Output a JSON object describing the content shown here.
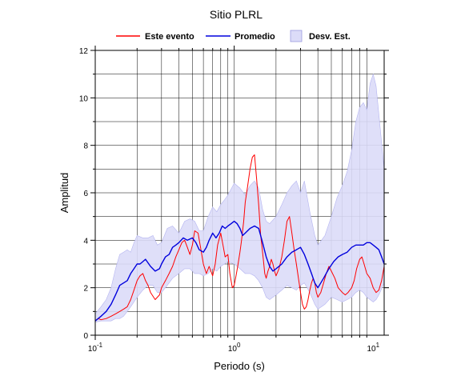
{
  "chart_data": {
    "type": "line",
    "title": "Sitio PLRL",
    "xlabel": "Periodo (s)",
    "ylabel": "Amplitud",
    "xscale": "log",
    "xlim": [
      0.1,
      12
    ],
    "ylim": [
      0,
      12
    ],
    "grid": true,
    "legend_position": "top",
    "legend": [
      "Este evento",
      "Promedio",
      "Desv. Est."
    ],
    "x_ticks": [
      {
        "value": 0.1,
        "base": "10",
        "exp": "-1"
      },
      {
        "value": 1,
        "base": "10",
        "exp": "0"
      },
      {
        "value": 10,
        "base": "10",
        "exp": "1"
      }
    ],
    "y_ticks": [
      0,
      2,
      4,
      6,
      8,
      10,
      12
    ],
    "colors": {
      "event": "#ff0000",
      "mean": "#0000dd",
      "band_fill": "#dcdcf8",
      "band_stroke": "#b4b4f0"
    },
    "series": [
      {
        "name": "Este evento",
        "x": [
          0.1,
          0.105,
          0.11,
          0.12,
          0.13,
          0.14,
          0.15,
          0.16,
          0.17,
          0.18,
          0.19,
          0.2,
          0.21,
          0.22,
          0.23,
          0.24,
          0.25,
          0.27,
          0.29,
          0.3,
          0.32,
          0.34,
          0.36,
          0.38,
          0.4,
          0.42,
          0.44,
          0.46,
          0.48,
          0.5,
          0.52,
          0.55,
          0.58,
          0.6,
          0.63,
          0.66,
          0.7,
          0.73,
          0.76,
          0.8,
          0.83,
          0.86,
          0.9,
          0.93,
          0.97,
          1.0,
          1.03,
          1.06,
          1.1,
          1.13,
          1.17,
          1.2,
          1.25,
          1.3,
          1.35,
          1.4,
          1.45,
          1.5,
          1.55,
          1.58,
          1.62,
          1.66,
          1.7,
          1.75,
          1.8,
          1.85,
          1.9,
          1.95,
          2.0,
          2.1,
          2.2,
          2.3,
          2.4,
          2.5,
          2.6,
          2.7,
          2.8,
          2.9,
          3.0,
          3.1,
          3.2,
          3.3,
          3.4,
          3.5,
          3.6,
          3.7,
          3.8,
          3.9,
          4.0,
          4.2,
          4.4,
          4.6,
          4.8,
          5.0,
          5.3,
          5.6,
          6.0,
          6.3,
          6.6,
          7.0,
          7.3,
          7.6,
          8.0,
          8.3,
          8.6,
          9.0,
          9.5,
          10.0,
          10.5,
          11.0,
          11.5,
          12.0
        ],
        "y": [
          0.6,
          0.7,
          0.65,
          0.7,
          0.8,
          0.9,
          1.0,
          1.1,
          1.2,
          1.5,
          1.9,
          2.3,
          2.5,
          2.6,
          2.3,
          2.1,
          1.8,
          1.5,
          1.7,
          2.0,
          2.3,
          2.6,
          2.9,
          3.3,
          3.6,
          3.9,
          4.0,
          3.7,
          3.4,
          3.8,
          4.4,
          4.3,
          3.5,
          3.0,
          2.6,
          2.9,
          2.5,
          3.0,
          3.8,
          4.3,
          3.8,
          3.3,
          3.4,
          2.6,
          2.0,
          2.1,
          2.5,
          2.9,
          3.5,
          4.0,
          4.8,
          5.6,
          6.3,
          7.0,
          7.5,
          7.6,
          6.6,
          5.5,
          4.2,
          3.8,
          3.2,
          2.6,
          2.4,
          2.7,
          2.9,
          3.2,
          3.0,
          2.7,
          2.5,
          2.8,
          3.3,
          4.0,
          4.8,
          5.0,
          4.3,
          3.6,
          3.0,
          2.4,
          1.8,
          1.3,
          1.1,
          1.2,
          1.5,
          1.9,
          2.2,
          2.4,
          2.2,
          1.8,
          1.6,
          1.8,
          2.2,
          2.6,
          2.9,
          2.7,
          2.4,
          2.0,
          1.8,
          1.7,
          1.8,
          2.0,
          2.3,
          2.8,
          3.2,
          3.3,
          3.0,
          2.6,
          2.4,
          2.0,
          1.8,
          1.9,
          2.3,
          2.9
        ]
      },
      {
        "name": "Promedio",
        "x": [
          0.1,
          0.11,
          0.12,
          0.13,
          0.14,
          0.15,
          0.16,
          0.17,
          0.18,
          0.19,
          0.2,
          0.21,
          0.22,
          0.23,
          0.25,
          0.27,
          0.29,
          0.3,
          0.32,
          0.34,
          0.36,
          0.38,
          0.4,
          0.43,
          0.46,
          0.5,
          0.53,
          0.56,
          0.6,
          0.63,
          0.66,
          0.7,
          0.74,
          0.78,
          0.82,
          0.86,
          0.9,
          0.95,
          1.0,
          1.05,
          1.1,
          1.15,
          1.2,
          1.3,
          1.4,
          1.5,
          1.6,
          1.7,
          1.8,
          1.9,
          2.0,
          2.2,
          2.4,
          2.6,
          2.8,
          3.0,
          3.2,
          3.4,
          3.6,
          3.8,
          4.0,
          4.4,
          4.8,
          5.2,
          5.6,
          6.0,
          6.5,
          7.0,
          7.5,
          8.0,
          8.5,
          9.0,
          9.5,
          10.0,
          10.5,
          11.0,
          11.5,
          12.0
        ],
        "y": [
          0.6,
          0.8,
          1.0,
          1.3,
          1.7,
          2.1,
          2.2,
          2.3,
          2.6,
          2.8,
          3.0,
          3.0,
          3.1,
          3.2,
          2.9,
          2.7,
          2.8,
          3.0,
          3.3,
          3.4,
          3.7,
          3.8,
          3.9,
          4.1,
          4.0,
          4.1,
          3.9,
          3.6,
          3.5,
          3.7,
          4.0,
          4.3,
          4.1,
          4.3,
          4.6,
          4.5,
          4.6,
          4.7,
          4.8,
          4.7,
          4.5,
          4.2,
          4.3,
          4.5,
          4.6,
          4.5,
          3.9,
          3.3,
          2.9,
          2.7,
          2.8,
          3.0,
          3.3,
          3.5,
          3.6,
          3.7,
          3.4,
          3.0,
          2.6,
          2.2,
          2.0,
          2.4,
          2.8,
          3.1,
          3.3,
          3.4,
          3.5,
          3.7,
          3.8,
          3.8,
          3.8,
          3.9,
          3.9,
          3.8,
          3.7,
          3.6,
          3.3,
          3.0
        ]
      }
    ],
    "band": {
      "name": "Desv. Est.",
      "x": [
        0.1,
        0.11,
        0.12,
        0.13,
        0.14,
        0.15,
        0.16,
        0.17,
        0.18,
        0.19,
        0.2,
        0.22,
        0.24,
        0.26,
        0.28,
        0.3,
        0.33,
        0.36,
        0.4,
        0.44,
        0.48,
        0.52,
        0.56,
        0.6,
        0.65,
        0.7,
        0.75,
        0.8,
        0.85,
        0.9,
        1.0,
        1.1,
        1.2,
        1.3,
        1.4,
        1.5,
        1.6,
        1.7,
        1.8,
        2.0,
        2.2,
        2.4,
        2.6,
        2.8,
        3.0,
        3.2,
        3.5,
        3.8,
        4.0,
        4.5,
        5.0,
        5.5,
        6.0,
        6.5,
        7.0,
        7.5,
        8.0,
        8.5,
        9.0,
        9.5,
        10.0,
        10.5,
        11.0,
        12.0
      ],
      "upper": [
        0.9,
        1.2,
        1.5,
        2.0,
        2.8,
        3.4,
        3.5,
        3.6,
        3.5,
        3.9,
        4.2,
        4.1,
        4.1,
        4.2,
        3.8,
        3.9,
        4.5,
        4.6,
        4.3,
        4.8,
        4.9,
        4.8,
        4.4,
        4.4,
        5.0,
        5.4,
        5.2,
        5.5,
        5.7,
        5.9,
        6.4,
        6.2,
        5.9,
        6.3,
        6.5,
        6.2,
        5.3,
        4.8,
        4.7,
        5.0,
        5.5,
        6.0,
        6.3,
        6.5,
        6.0,
        6.5,
        5.2,
        4.2,
        3.8,
        4.2,
        5.0,
        5.8,
        6.3,
        6.9,
        7.8,
        9.0,
        9.6,
        9.8,
        9.5,
        10.6,
        11.0,
        10.5,
        9.3,
        7.0
      ],
      "lower": [
        0.55,
        0.6,
        0.6,
        0.6,
        0.7,
        0.7,
        0.8,
        1.0,
        1.2,
        1.4,
        1.6,
        1.9,
        2.1,
        2.1,
        1.8,
        1.8,
        2.1,
        2.4,
        2.6,
        2.8,
        2.8,
        2.6,
        2.6,
        2.5,
        2.6,
        2.8,
        2.7,
        2.9,
        3.0,
        3.1,
        3.0,
        2.8,
        2.6,
        2.6,
        2.5,
        2.3,
        2.0,
        1.6,
        1.5,
        1.7,
        1.9,
        2.1,
        2.0,
        1.9,
        2.1,
        2.2,
        1.8,
        1.3,
        1.1,
        1.3,
        1.6,
        1.5,
        1.4,
        1.5,
        1.6,
        1.8,
        1.9,
        1.8,
        1.6,
        1.5,
        1.4,
        1.5,
        1.7,
        2.2
      ]
    }
  }
}
